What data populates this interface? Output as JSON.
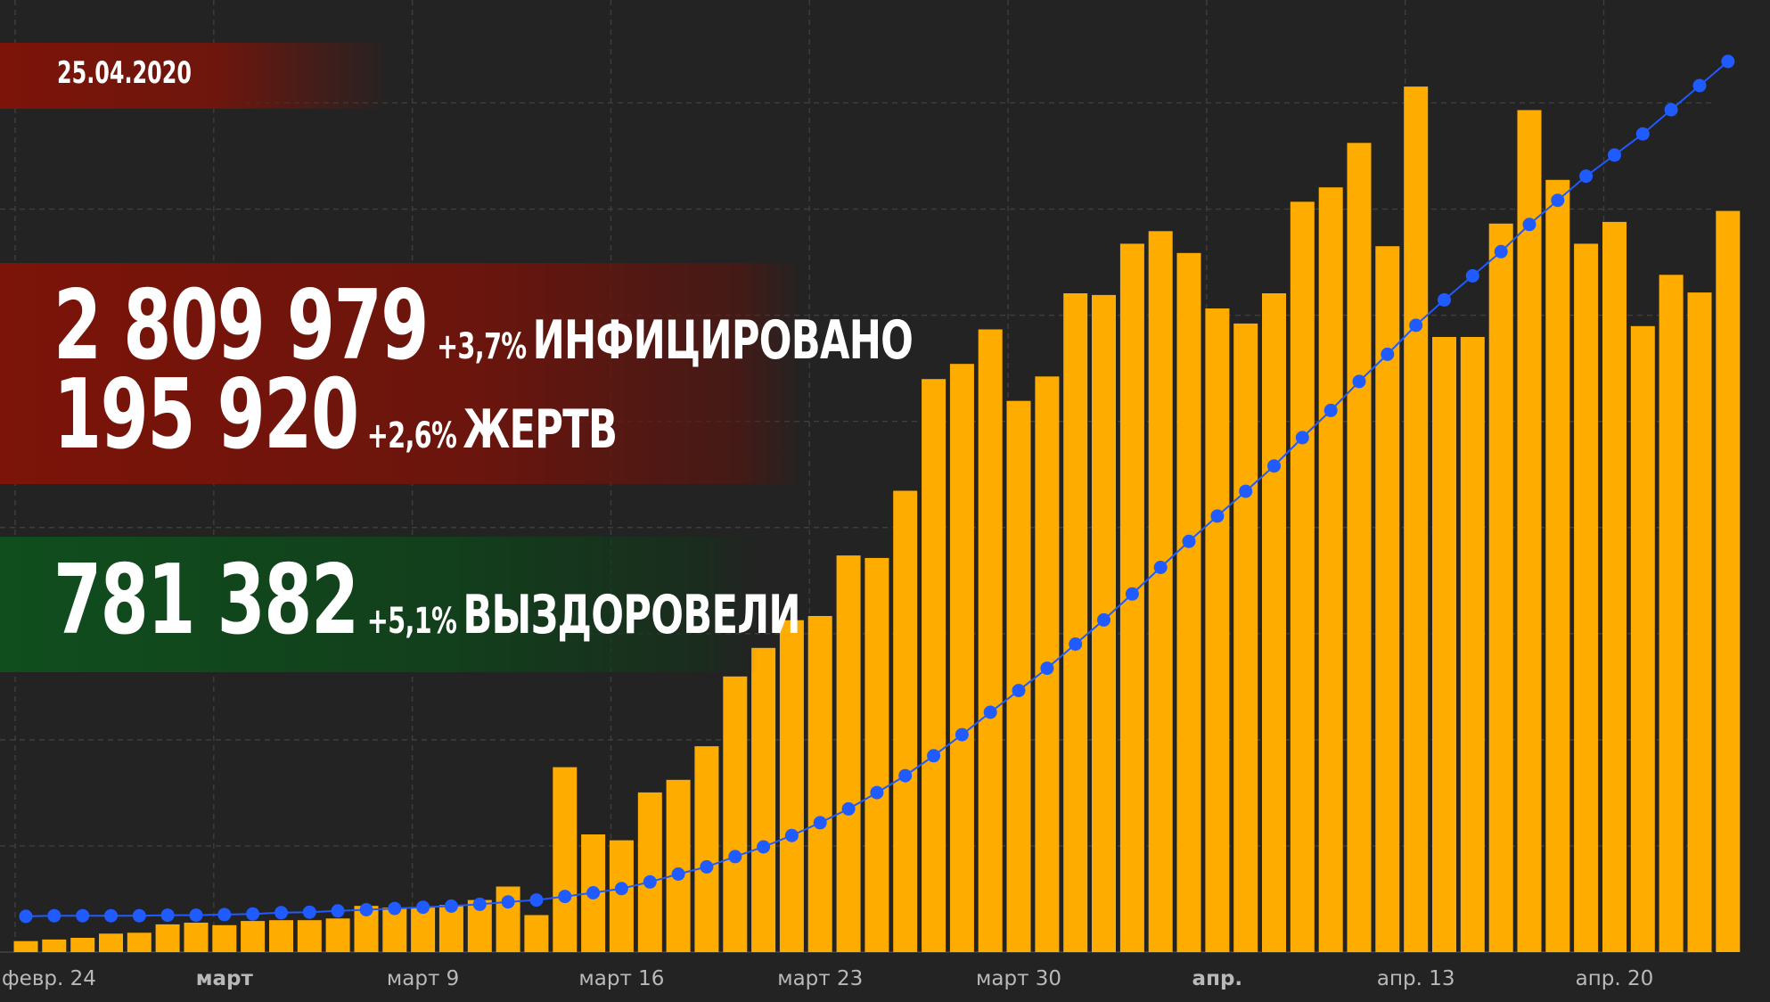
{
  "header": {
    "date": "25.04.2020"
  },
  "stats": {
    "infected": {
      "value": "2 809 979",
      "change": "+3,7%",
      "label": "ИНФИЦИРОВАНО"
    },
    "deaths": {
      "value": "195 920",
      "change": "+2,6%",
      "label": "ЖЕРТВ"
    },
    "recovered": {
      "value": "781 382",
      "change": "+5,1%",
      "label": "ВЫЗДОРОВЕЛИ"
    }
  },
  "colors": {
    "background": "#232323",
    "bar": "#ffac00",
    "line": "#1f5bff",
    "red_panel": "#7c1409",
    "green_panel": "#104e1d"
  },
  "chart_data": {
    "type": "bar",
    "grid": true,
    "x_tick_labels": [
      {
        "index": 0,
        "label": "февр. 24",
        "bold": false
      },
      {
        "index": 7,
        "label": "март",
        "bold": true
      },
      {
        "index": 14,
        "label": "март 9",
        "bold": false
      },
      {
        "index": 21,
        "label": "март 16",
        "bold": false
      },
      {
        "index": 28,
        "label": "март 23",
        "bold": false
      },
      {
        "index": 35,
        "label": "март 30",
        "bold": false
      },
      {
        "index": 42,
        "label": "апр.",
        "bold": true
      },
      {
        "index": 49,
        "label": "апр. 13",
        "bold": false
      },
      {
        "index": 56,
        "label": "апр. 20",
        "bold": false
      }
    ],
    "series": [
      {
        "type": "bar",
        "values": [
          1.3,
          1.5,
          1.7,
          2.2,
          2.3,
          3.3,
          3.5,
          3.2,
          3.7,
          3.8,
          3.8,
          4.0,
          5.5,
          5.3,
          5.3,
          5.6,
          6.2,
          7.8,
          4.4,
          22.0,
          14.0,
          13.3,
          19.0,
          20.5,
          24.5,
          32.8,
          36.2,
          39.5,
          40.0,
          47.2,
          46.9,
          54.9,
          68.2,
          70.0,
          74.1,
          65.6,
          68.5,
          78.4,
          78.2,
          84.3,
          85.8,
          83.2,
          76.6,
          74.8,
          78.4,
          89.3,
          91.0,
          96.3,
          84.0,
          103.0,
          73.2,
          73.2,
          86.7,
          100.2,
          91.9,
          84.3,
          86.9,
          74.5,
          80.6,
          78.5,
          88.2
        ],
        "ylim": [
          0,
          108
        ]
      },
      {
        "type": "line",
        "values": [
          0.9,
          1.0,
          1.0,
          1.0,
          1.0,
          1.1,
          1.1,
          1.2,
          1.3,
          1.5,
          1.6,
          1.8,
          2.0,
          2.2,
          2.4,
          2.6,
          2.9,
          3.3,
          3.6,
          4.2,
          4.8,
          5.5,
          6.6,
          7.9,
          9.1,
          10.8,
          12.4,
          14.3,
          16.4,
          18.7,
          21.4,
          24.2,
          27.5,
          31.0,
          34.7,
          38.3,
          42.0,
          46.0,
          50.0,
          54.3,
          58.7,
          63.0,
          67.2,
          71.3,
          75.5,
          80.2,
          84.7,
          89.5,
          94.0,
          98.8,
          103.0,
          107.0,
          111.0,
          115.5,
          119.5,
          123.5,
          127.0,
          130.5,
          134.5,
          138.5,
          142.5
        ],
        "ylim": [
          0,
          145
        ]
      }
    ]
  }
}
